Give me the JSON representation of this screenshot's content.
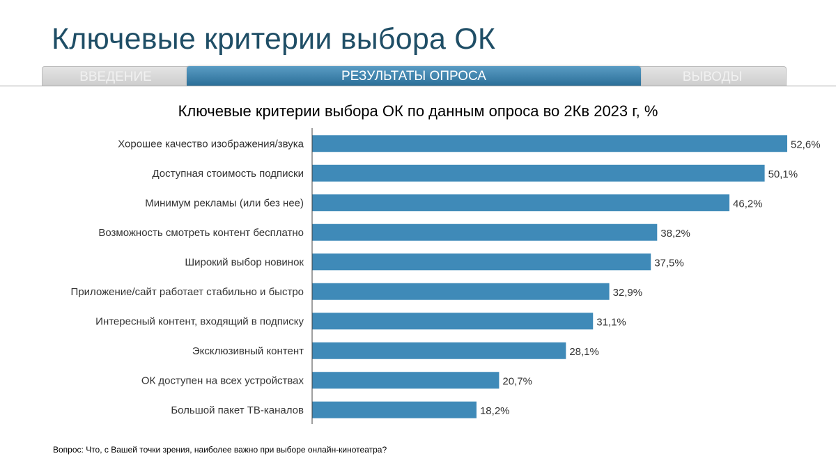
{
  "header": {
    "title": "Ключевые критерии выбора ОК"
  },
  "tabs": [
    {
      "label": "ВВЕДЕНИЕ",
      "active": false
    },
    {
      "label": "РЕЗУЛЬТАТЫ ОПРОСА",
      "active": true
    },
    {
      "label": "ВЫВОДЫ",
      "active": false
    }
  ],
  "colors": {
    "bar": "#3f8ab8",
    "title": "#1f4e66",
    "tab_active": "#3a80ad"
  },
  "chart_data": {
    "type": "bar",
    "orientation": "horizontal",
    "title": "Ключевые критерии выбора ОК по данным опроса во 2Кв 2023 г, %",
    "categories": [
      "Хорошее качество изображения/звука",
      "Доступная стоимость подписки",
      "Минимум рекламы (или без нее)",
      "Возможность смотреть контент бесплатно",
      "Широкий выбор новинок",
      "Приложение/сайт работает стабильно и быстро",
      "Интересный контент, входящий в подписку",
      "Эксклюзивный контент",
      "ОК доступен на всех устройствах",
      "Большой пакет ТВ-каналов"
    ],
    "values": [
      52.6,
      50.1,
      46.2,
      38.2,
      37.5,
      32.9,
      31.1,
      28.1,
      20.7,
      18.2
    ],
    "value_labels": [
      "52,6%",
      "50,1%",
      "46,2%",
      "38,2%",
      "37,5%",
      "32,9%",
      "31,1%",
      "28,1%",
      "20,7%",
      "18,2%"
    ],
    "xlim": [
      0,
      52.6
    ],
    "grid": false,
    "legend": "none"
  },
  "footnote": "Вопрос: Что, с Вашей точки зрения, наиболее важно при выборе онлайн-кинотеатра?"
}
